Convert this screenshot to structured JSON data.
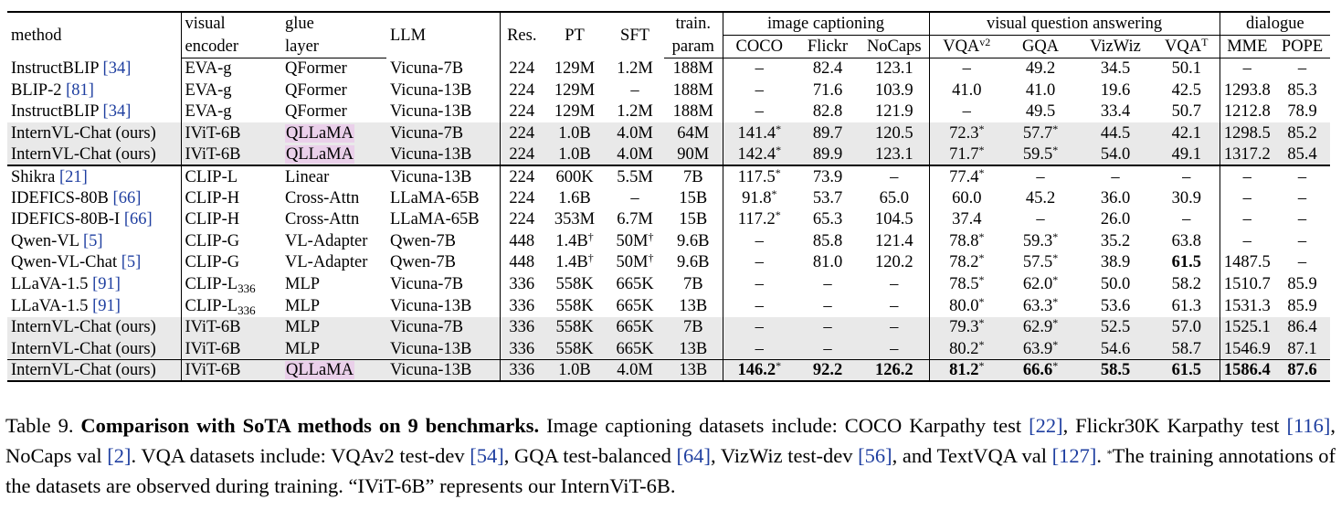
{
  "table": {
    "headers": {
      "method": "method",
      "visual_1": "visual",
      "visual_2": "encoder",
      "glue_1": "glue",
      "glue_2": "layer",
      "llm": "LLM",
      "res": "Res.",
      "pt": "PT",
      "sft": "SFT",
      "train_1": "train.",
      "train_2": "param",
      "group_caption": "image captioning",
      "group_vqa": "visual question answering",
      "group_dialogue": "dialogue",
      "coco": "COCO",
      "flickr": "Flickr",
      "nocaps": "NoCaps",
      "vqav2": "VQA",
      "vqav2_sup": "v2",
      "gqa": "GQA",
      "vizwiz": "VizWiz",
      "vqat": "VQA",
      "vqat_sup": "T",
      "mme": "MME",
      "pope": "POPE"
    },
    "rows": [
      {
        "method": "InstructBLIP ",
        "cite": "[34]",
        "encoder": "EVA-g",
        "enc_sub": "",
        "glue": "QFormer",
        "glue_hl": false,
        "llm": "Vicuna-7B",
        "res": "224",
        "pt": "129M",
        "pt_sup": "",
        "sft": "1.2M",
        "sft_sup": "",
        "param": "188M",
        "coco": "–",
        "coco_sup": "",
        "flickr": "82.4",
        "nocaps": "123.1",
        "vqav2": "–",
        "vqav2_sup": "",
        "gqa": "49.2",
        "gqa_sup": "",
        "vizwiz": "34.5",
        "vqat": "50.1",
        "mme": "–",
        "pope": "–",
        "shade": false,
        "bold": []
      },
      {
        "method": "BLIP-2 ",
        "cite": "[81]",
        "encoder": "EVA-g",
        "enc_sub": "",
        "glue": "QFormer",
        "glue_hl": false,
        "llm": "Vicuna-13B",
        "res": "224",
        "pt": "129M",
        "pt_sup": "",
        "sft": "–",
        "sft_sup": "",
        "param": "188M",
        "coco": "–",
        "coco_sup": "",
        "flickr": "71.6",
        "nocaps": "103.9",
        "vqav2": "41.0",
        "vqav2_sup": "",
        "gqa": "41.0",
        "gqa_sup": "",
        "vizwiz": "19.6",
        "vqat": "42.5",
        "mme": "1293.8",
        "pope": "85.3",
        "shade": false,
        "bold": []
      },
      {
        "method": "InstructBLIP ",
        "cite": "[34]",
        "encoder": "EVA-g",
        "enc_sub": "",
        "glue": "QFormer",
        "glue_hl": false,
        "llm": "Vicuna-13B",
        "res": "224",
        "pt": "129M",
        "pt_sup": "",
        "sft": "1.2M",
        "sft_sup": "",
        "param": "188M",
        "coco": "–",
        "coco_sup": "",
        "flickr": "82.8",
        "nocaps": "121.9",
        "vqav2": "–",
        "vqav2_sup": "",
        "gqa": "49.5",
        "gqa_sup": "",
        "vizwiz": "33.4",
        "vqat": "50.7",
        "mme": "1212.8",
        "pope": "78.9",
        "shade": false,
        "bold": []
      },
      {
        "method": "InternVL-Chat (ours)",
        "cite": "",
        "encoder": "IViT-6B",
        "enc_sub": "",
        "glue": "QLLaMA",
        "glue_hl": true,
        "llm": "Vicuna-7B",
        "res": "224",
        "pt": "1.0B",
        "pt_sup": "",
        "sft": "4.0M",
        "sft_sup": "",
        "param": "64M",
        "coco": "141.4",
        "coco_sup": "*",
        "flickr": "89.7",
        "nocaps": "120.5",
        "vqav2": "72.3",
        "vqav2_sup": "*",
        "gqa": "57.7",
        "gqa_sup": "*",
        "vizwiz": "44.5",
        "vqat": "42.1",
        "mme": "1298.5",
        "pope": "85.2",
        "shade": true,
        "bold": []
      },
      {
        "method": "InternVL-Chat (ours)",
        "cite": "",
        "encoder": "IViT-6B",
        "enc_sub": "",
        "glue": "QLLaMA",
        "glue_hl": true,
        "llm": "Vicuna-13B",
        "res": "224",
        "pt": "1.0B",
        "pt_sup": "",
        "sft": "4.0M",
        "sft_sup": "",
        "param": "90M",
        "coco": "142.4",
        "coco_sup": "*",
        "flickr": "89.9",
        "nocaps": "123.1",
        "vqav2": "71.7",
        "vqav2_sup": "*",
        "gqa": "59.5",
        "gqa_sup": "*",
        "vizwiz": "54.0",
        "vqat": "49.1",
        "mme": "1317.2",
        "pope": "85.4",
        "shade": true,
        "bold": []
      },
      {
        "method": "Shikra ",
        "cite": "[21]",
        "encoder": "CLIP-L",
        "enc_sub": "",
        "glue": "Linear",
        "glue_hl": false,
        "llm": "Vicuna-13B",
        "res": "224",
        "pt": "600K",
        "pt_sup": "",
        "sft": "5.5M",
        "sft_sup": "",
        "param": "7B",
        "coco": "117.5",
        "coco_sup": "*",
        "flickr": "73.9",
        "nocaps": "–",
        "vqav2": "77.4",
        "vqav2_sup": "*",
        "gqa": "–",
        "gqa_sup": "",
        "vizwiz": "–",
        "vqat": "–",
        "mme": "–",
        "pope": "–",
        "shade": false,
        "bold": []
      },
      {
        "method": "IDEFICS-80B ",
        "cite": "[66]",
        "encoder": "CLIP-H",
        "enc_sub": "",
        "glue": "Cross-Attn",
        "glue_hl": false,
        "llm": "LLaMA-65B",
        "res": "224",
        "pt": "1.6B",
        "pt_sup": "",
        "sft": "–",
        "sft_sup": "",
        "param": "15B",
        "coco": "91.8",
        "coco_sup": "*",
        "flickr": "53.7",
        "nocaps": "65.0",
        "vqav2": "60.0",
        "vqav2_sup": "",
        "gqa": "45.2",
        "gqa_sup": "",
        "vizwiz": "36.0",
        "vqat": "30.9",
        "mme": "–",
        "pope": "–",
        "shade": false,
        "bold": []
      },
      {
        "method": "IDEFICS-80B-I ",
        "cite": "[66]",
        "encoder": "CLIP-H",
        "enc_sub": "",
        "glue": "Cross-Attn",
        "glue_hl": false,
        "llm": "LLaMA-65B",
        "res": "224",
        "pt": "353M",
        "pt_sup": "",
        "sft": "6.7M",
        "sft_sup": "",
        "param": "15B",
        "coco": "117.2",
        "coco_sup": "*",
        "flickr": "65.3",
        "nocaps": "104.5",
        "vqav2": "37.4",
        "vqav2_sup": "",
        "gqa": "–",
        "gqa_sup": "",
        "vizwiz": "26.0",
        "vqat": "–",
        "mme": "–",
        "pope": "–",
        "shade": false,
        "bold": []
      },
      {
        "method": "Qwen-VL ",
        "cite": "[5]",
        "encoder": "CLIP-G",
        "enc_sub": "",
        "glue": "VL-Adapter",
        "glue_hl": false,
        "llm": "Qwen-7B",
        "res": "448",
        "pt": "1.4B",
        "pt_sup": "†",
        "sft": "50M",
        "sft_sup": "†",
        "param": "9.6B",
        "coco": "–",
        "coco_sup": "",
        "flickr": "85.8",
        "nocaps": "121.4",
        "vqav2": "78.8",
        "vqav2_sup": "*",
        "gqa": "59.3",
        "gqa_sup": "*",
        "vizwiz": "35.2",
        "vqat": "63.8",
        "mme": "–",
        "pope": "–",
        "shade": false,
        "bold": []
      },
      {
        "method": "Qwen-VL-Chat ",
        "cite": "[5]",
        "encoder": "CLIP-G",
        "enc_sub": "",
        "glue": "VL-Adapter",
        "glue_hl": false,
        "llm": "Qwen-7B",
        "res": "448",
        "pt": "1.4B",
        "pt_sup": "†",
        "sft": "50M",
        "sft_sup": "†",
        "param": "9.6B",
        "coco": "–",
        "coco_sup": "",
        "flickr": "81.0",
        "nocaps": "120.2",
        "vqav2": "78.2",
        "vqav2_sup": "*",
        "gqa": "57.5",
        "gqa_sup": "*",
        "vizwiz": "38.9",
        "vqat": "61.5",
        "mme": "1487.5",
        "pope": "–",
        "shade": false,
        "bold": [
          "vqat"
        ]
      },
      {
        "method": "LLaVA-1.5 ",
        "cite": "[91]",
        "encoder": "CLIP-L",
        "enc_sub": "336",
        "glue": "MLP",
        "glue_hl": false,
        "llm": "Vicuna-7B",
        "res": "336",
        "pt": "558K",
        "pt_sup": "",
        "sft": "665K",
        "sft_sup": "",
        "param": "7B",
        "coco": "–",
        "coco_sup": "",
        "flickr": "–",
        "nocaps": "–",
        "vqav2": "78.5",
        "vqav2_sup": "*",
        "gqa": "62.0",
        "gqa_sup": "*",
        "vizwiz": "50.0",
        "vqat": "58.2",
        "mme": "1510.7",
        "pope": "85.9",
        "shade": false,
        "bold": []
      },
      {
        "method": "LLaVA-1.5 ",
        "cite": "[91]",
        "encoder": "CLIP-L",
        "enc_sub": "336",
        "glue": "MLP",
        "glue_hl": false,
        "llm": "Vicuna-13B",
        "res": "336",
        "pt": "558K",
        "pt_sup": "",
        "sft": "665K",
        "sft_sup": "",
        "param": "13B",
        "coco": "–",
        "coco_sup": "",
        "flickr": "–",
        "nocaps": "–",
        "vqav2": "80.0",
        "vqav2_sup": "*",
        "gqa": "63.3",
        "gqa_sup": "*",
        "vizwiz": "53.6",
        "vqat": "61.3",
        "mme": "1531.3",
        "pope": "85.9",
        "shade": false,
        "bold": []
      },
      {
        "method": "InternVL-Chat (ours)",
        "cite": "",
        "encoder": "IViT-6B",
        "enc_sub": "",
        "glue": "MLP",
        "glue_hl": false,
        "llm": "Vicuna-7B",
        "res": "336",
        "pt": "558K",
        "pt_sup": "",
        "sft": "665K",
        "sft_sup": "",
        "param": "7B",
        "coco": "–",
        "coco_sup": "",
        "flickr": "–",
        "nocaps": "–",
        "vqav2": "79.3",
        "vqav2_sup": "*",
        "gqa": "62.9",
        "gqa_sup": "*",
        "vizwiz": "52.5",
        "vqat": "57.0",
        "mme": "1525.1",
        "pope": "86.4",
        "shade": true,
        "bold": []
      },
      {
        "method": "InternVL-Chat (ours)",
        "cite": "",
        "encoder": "IViT-6B",
        "enc_sub": "",
        "glue": "MLP",
        "glue_hl": false,
        "llm": "Vicuna-13B",
        "res": "336",
        "pt": "558K",
        "pt_sup": "",
        "sft": "665K",
        "sft_sup": "",
        "param": "13B",
        "coco": "–",
        "coco_sup": "",
        "flickr": "–",
        "nocaps": "–",
        "vqav2": "80.2",
        "vqav2_sup": "*",
        "gqa": "63.9",
        "gqa_sup": "*",
        "vizwiz": "54.6",
        "vqat": "58.7",
        "mme": "1546.9",
        "pope": "87.1",
        "shade": true,
        "bold": []
      },
      {
        "method": "InternVL-Chat (ours)",
        "cite": "",
        "encoder": "IViT-6B",
        "enc_sub": "",
        "glue": "QLLaMA",
        "glue_hl": true,
        "llm": "Vicuna-13B",
        "res": "336",
        "pt": "1.0B",
        "pt_sup": "",
        "sft": "4.0M",
        "sft_sup": "",
        "param": "13B",
        "coco": "146.2",
        "coco_sup": "*",
        "flickr": "92.2",
        "nocaps": "126.2",
        "vqav2": "81.2",
        "vqav2_sup": "*",
        "gqa": "66.6",
        "gqa_sup": "*",
        "vizwiz": "58.5",
        "vqat": "61.5",
        "mme": "1586.4",
        "pope": "87.6",
        "shade": true,
        "bold": [
          "coco",
          "flickr",
          "nocaps",
          "vqav2",
          "gqa",
          "vizwiz",
          "vqat",
          "mme",
          "pope"
        ]
      }
    ]
  },
  "caption": {
    "label": "Table 9. ",
    "title": "Comparison with SoTA methods on 9 benchmarks.",
    "t1": " Image captioning datasets include: COCO Karpathy test ",
    "c1": "[22]",
    "t2": ", Flickr30K Karpathy test ",
    "c2": "[116]",
    "t3": ", NoCaps val ",
    "c3": "[2]",
    "t4": ".  VQA datasets include: VQAv2 test-dev ",
    "c4": "[54]",
    "t5": ", GQA test-balanced ",
    "c5": "[64]",
    "t6": ", VizWiz test-dev ",
    "c6": "[56]",
    "t7": ", and TextVQA val ",
    "c7": "[127]",
    "t8": ".  ",
    "star": "*",
    "t9": "The training annotations of the datasets are observed during training. “IViT-6B” represents our InternViT-6B."
  }
}
